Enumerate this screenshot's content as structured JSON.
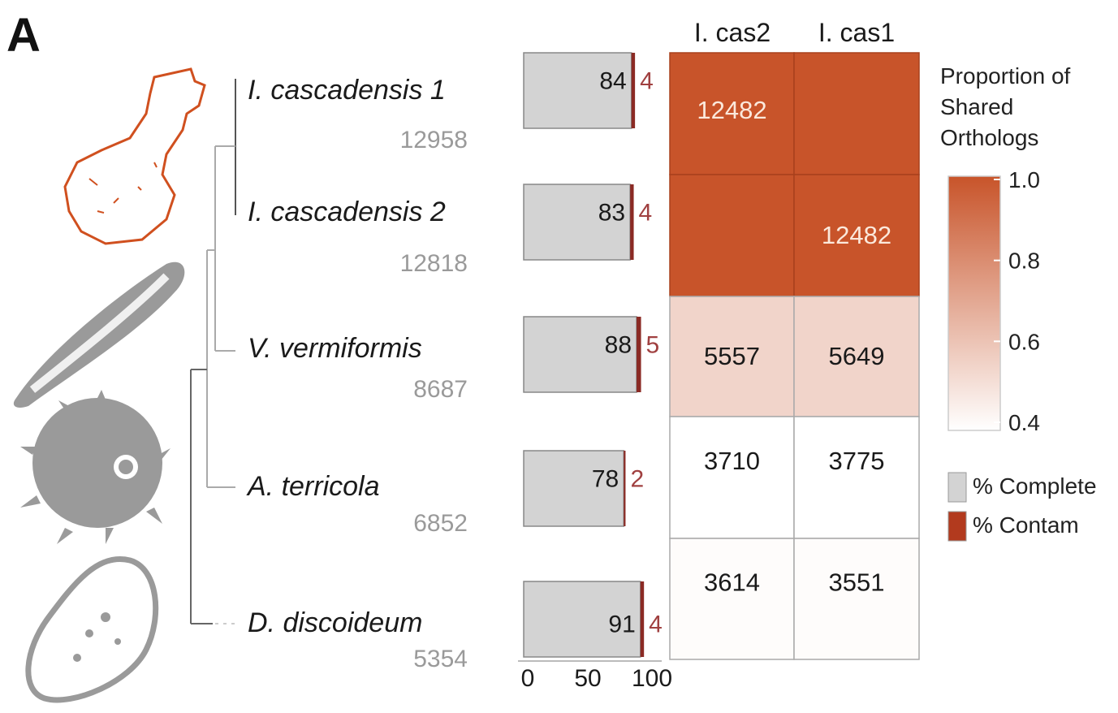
{
  "panel_label": "A",
  "chart_data": {
    "type": "heatmap",
    "rows": [
      {
        "species": "I. cascadensis 1",
        "count": "12958",
        "complete": 84,
        "contam": 4
      },
      {
        "species": "I. cascadensis 2",
        "count": "12818",
        "complete": 83,
        "contam": 4
      },
      {
        "species": "V. vermiformis",
        "count": "8687",
        "complete": 88,
        "contam": 5
      },
      {
        "species": "A. terricola",
        "count": "6852",
        "complete": 78,
        "contam": 2
      },
      {
        "species": "D. discoideum",
        "count": "5354",
        "complete": 91,
        "contam": 4
      }
    ],
    "columns": [
      "I. cas2",
      "I. cas1"
    ],
    "cells": [
      [
        {
          "label": "12482",
          "proportion": 1.0
        },
        {
          "label": "",
          "proportion": 1.0
        }
      ],
      [
        {
          "label": "",
          "proportion": 1.0
        },
        {
          "label": "12482",
          "proportion": 1.0
        }
      ],
      [
        {
          "label": "5557",
          "proportion": 0.55
        },
        {
          "label": "5649",
          "proportion": 0.55
        }
      ],
      [
        {
          "label": "3710",
          "proportion": 0.4
        },
        {
          "label": "3775",
          "proportion": 0.4
        }
      ],
      [
        {
          "label": "3614",
          "proportion": 0.41
        },
        {
          "label": "3551",
          "proportion": 0.41
        }
      ]
    ],
    "bar_axis": {
      "ticks": [
        "0",
        "50",
        "100"
      ],
      "range": [
        0,
        100
      ]
    },
    "colorbar": {
      "title": [
        "Proportion of",
        "Shared",
        "Orthologs"
      ],
      "ticks": [
        "1.0",
        "0.8",
        "0.6",
        "0.4"
      ],
      "range": [
        0.4,
        1.0
      ],
      "low_color": "#ffffff",
      "high_color": "#c8542a"
    },
    "legend": [
      {
        "label": "% Complete",
        "color": "#d3d3d3"
      },
      {
        "label": "% Contam",
        "color": "#b23a1e"
      }
    ]
  },
  "colors": {
    "complete": "#d3d3d3",
    "contam": "#8b2a24",
    "contam_text": "#a04040",
    "highlight": "#d0501f",
    "organism_gray": "#9a9a9a"
  }
}
